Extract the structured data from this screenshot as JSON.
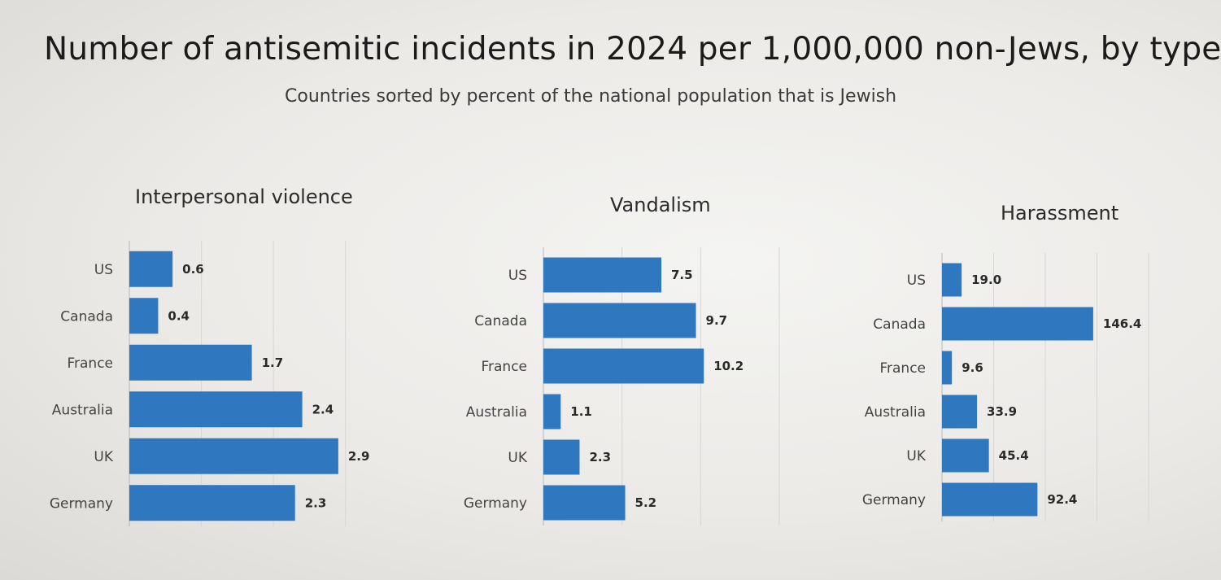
{
  "header": {
    "title": "Number of antisemitic incidents in 2024 per 1,000,000 non-Jews, by type",
    "subtitle": "Countries sorted by percent of the national population that is Jewish"
  },
  "colors": {
    "bar": "#2f78c0",
    "text": "#222222"
  },
  "chart_data": [
    {
      "type": "bar",
      "orientation": "horizontal",
      "title": "Interpersonal violence",
      "categories": [
        "US",
        "Canada",
        "France",
        "Australia",
        "UK",
        "Germany"
      ],
      "values": [
        0.6,
        0.4,
        1.7,
        2.4,
        2.9,
        2.3
      ],
      "value_labels": [
        "0.6",
        "0.4",
        "1.7",
        "2.4",
        "2.9",
        "2.3"
      ],
      "xlim": [
        0,
        3.5
      ],
      "gridlines": [
        0,
        1,
        2,
        3
      ],
      "grid": true
    },
    {
      "type": "bar",
      "orientation": "horizontal",
      "title": "Vandalism",
      "categories": [
        "US",
        "Canada",
        "France",
        "Australia",
        "UK",
        "Germany"
      ],
      "values": [
        7.5,
        9.7,
        10.2,
        1.1,
        2.3,
        5.2
      ],
      "value_labels": [
        "7.5",
        "9.7",
        "10.2",
        "1.1",
        "2.3",
        "5.2"
      ],
      "xlim": [
        0,
        15
      ],
      "gridlines": [
        0,
        5,
        10,
        15
      ],
      "grid": true
    },
    {
      "type": "bar",
      "orientation": "horizontal",
      "title": "Harassment",
      "categories": [
        "US",
        "Canada",
        "France",
        "Australia",
        "UK",
        "Germany"
      ],
      "values": [
        19.0,
        146.4,
        9.6,
        33.9,
        45.4,
        92.4
      ],
      "value_labels": [
        "19.0",
        "146.4",
        "9.6",
        "33.9",
        "45.4",
        "92.4"
      ],
      "xlim": [
        0,
        200
      ],
      "gridlines": [
        0,
        50,
        100,
        150,
        200
      ],
      "grid": true
    }
  ]
}
